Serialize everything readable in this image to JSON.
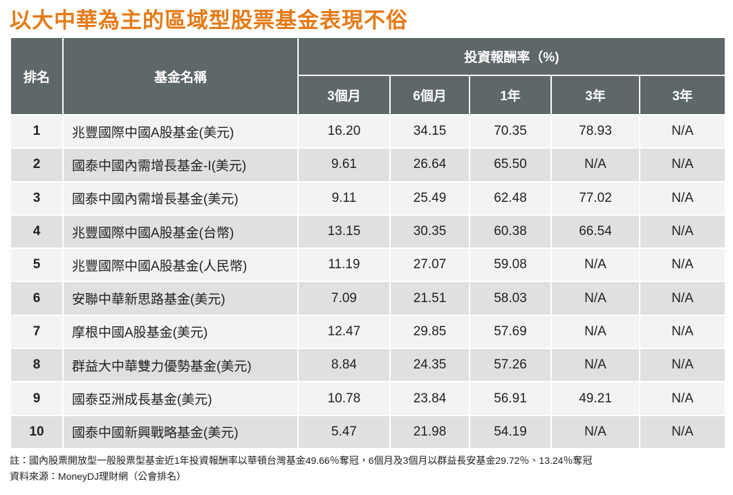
{
  "title": "以大中華為主的區域型股票基金表現不俗",
  "table": {
    "header": {
      "rank": "排名",
      "name": "基金名稱",
      "group": "投資報酬率（%)",
      "periods": [
        "3個月",
        "6個月",
        "1年",
        "3年",
        "3年"
      ]
    },
    "rows": [
      [
        "1",
        "兆豐國際中國A股基金(美元)",
        "16.20",
        "34.15",
        "70.35",
        "78.93",
        "N/A"
      ],
      [
        "2",
        "國泰中國內需增長基金-I(美元)",
        "9.61",
        "26.64",
        "65.50",
        "N/A",
        "N/A"
      ],
      [
        "3",
        "國泰中國內需增長基金(美元)",
        "9.11",
        "25.49",
        "62.48",
        "77.02",
        "N/A"
      ],
      [
        "4",
        "兆豐國際中國A股基金(台幣)",
        "13.15",
        "30.35",
        "60.38",
        "66.54",
        "N/A"
      ],
      [
        "5",
        "兆豐國際中國A股基金(人民幣)",
        "11.19",
        "27.07",
        "59.08",
        "N/A",
        "N/A"
      ],
      [
        "6",
        "安聯中華新思路基金(美元)",
        "7.09",
        "21.51",
        "58.03",
        "N/A",
        "N/A"
      ],
      [
        "7",
        "摩根中國A股基金(美元)",
        "12.47",
        "29.85",
        "57.69",
        "N/A",
        "N/A"
      ],
      [
        "8",
        "群益大中華雙力優勢基金(美元)",
        "8.84",
        "24.35",
        "57.26",
        "N/A",
        "N/A"
      ],
      [
        "9",
        "國泰亞洲成長基金(美元)",
        "10.78",
        "23.84",
        "56.91",
        "49.21",
        "N/A"
      ],
      [
        "10",
        "國泰中國新興戰略基金(美元)",
        "5.47",
        "21.98",
        "54.19",
        "N/A",
        "N/A"
      ]
    ]
  },
  "notes": [
    "註：國內股票開放型一般股票型基金近1年投資報酬率以華頓台灣基金49.66％奪冠，6個月及3個月以群益長安基金29.72％、13.24％奪冠",
    "資料來源：MoneyDJ理財網（公會排名）"
  ]
}
